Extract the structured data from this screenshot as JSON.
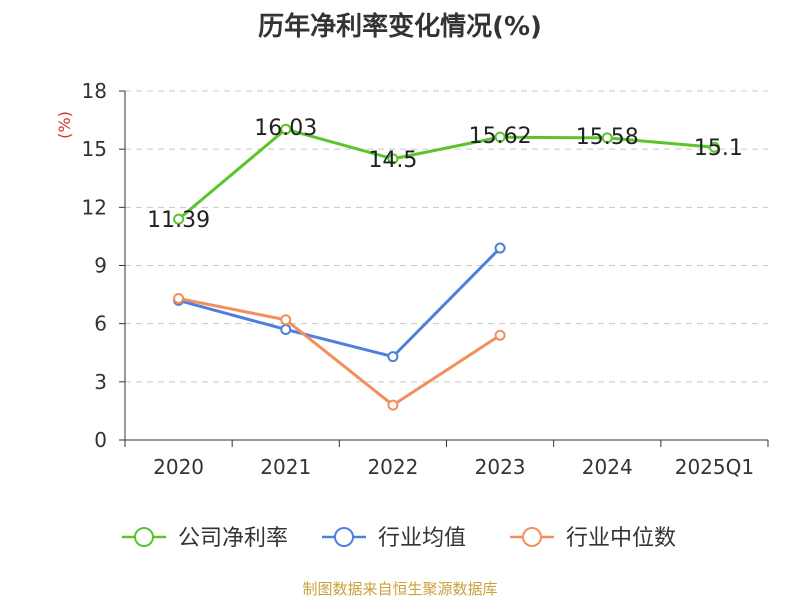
{
  "title": "历年净利率变化情况(%)",
  "source": "制图数据来自恒生聚源数据库",
  "chart_data": {
    "type": "line",
    "title": "历年净利率变化情况(%)",
    "ylabel": "(%)",
    "xlabel": "",
    "categories": [
      "2020",
      "2021",
      "2022",
      "2023",
      "2024",
      "2025Q1"
    ],
    "ylim": [
      0,
      18
    ],
    "yticks": [
      0,
      3,
      6,
      9,
      12,
      15,
      18
    ],
    "grid": "horizontal-dashed",
    "legend": "bottom",
    "series": [
      {
        "name": "公司净利率",
        "color": "#5cc42b",
        "values": [
          11.39,
          16.03,
          14.5,
          15.62,
          15.58,
          15.1
        ],
        "labels": [
          "11.39",
          "16.03",
          "14.5",
          "15.62",
          "15.58",
          "15.1"
        ]
      },
      {
        "name": "行业均值",
        "color": "#4e7fdc",
        "values": [
          7.2,
          5.7,
          4.3,
          9.9,
          null,
          null
        ]
      },
      {
        "name": "行业中位数",
        "color": "#f38f5c",
        "values": [
          7.3,
          6.2,
          1.8,
          5.4,
          null,
          null
        ]
      }
    ]
  }
}
